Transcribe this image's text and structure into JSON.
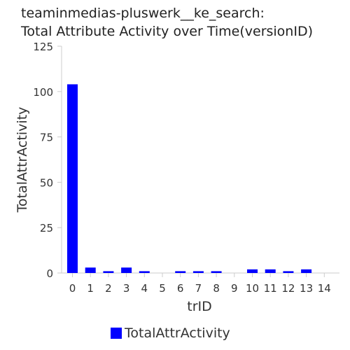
{
  "chart_data": {
    "type": "bar",
    "title_lines": [
      "teaminmedias-pluswerk__ke_search:",
      "Total Attribute Activity over Time(versionID)"
    ],
    "xlabel": "trID",
    "ylabel": "TotalAttrActivity",
    "categories": [
      "0",
      "1",
      "2",
      "3",
      "4",
      "5",
      "6",
      "7",
      "8",
      "9",
      "10",
      "11",
      "12",
      "13",
      "14"
    ],
    "series": [
      {
        "name": "TotalAttrActivity",
        "values": [
          104,
          3,
          1,
          3,
          1,
          0,
          1,
          1,
          1,
          0,
          2,
          2,
          1,
          2,
          0
        ]
      }
    ],
    "ylim": [
      0,
      125
    ],
    "yticks": [
      0,
      25,
      50,
      75,
      100,
      125
    ],
    "grid": false,
    "legend_position": "bottom",
    "colors": {
      "bar": "#0000ff",
      "axis": "#cccccc",
      "text": "#333333"
    }
  }
}
